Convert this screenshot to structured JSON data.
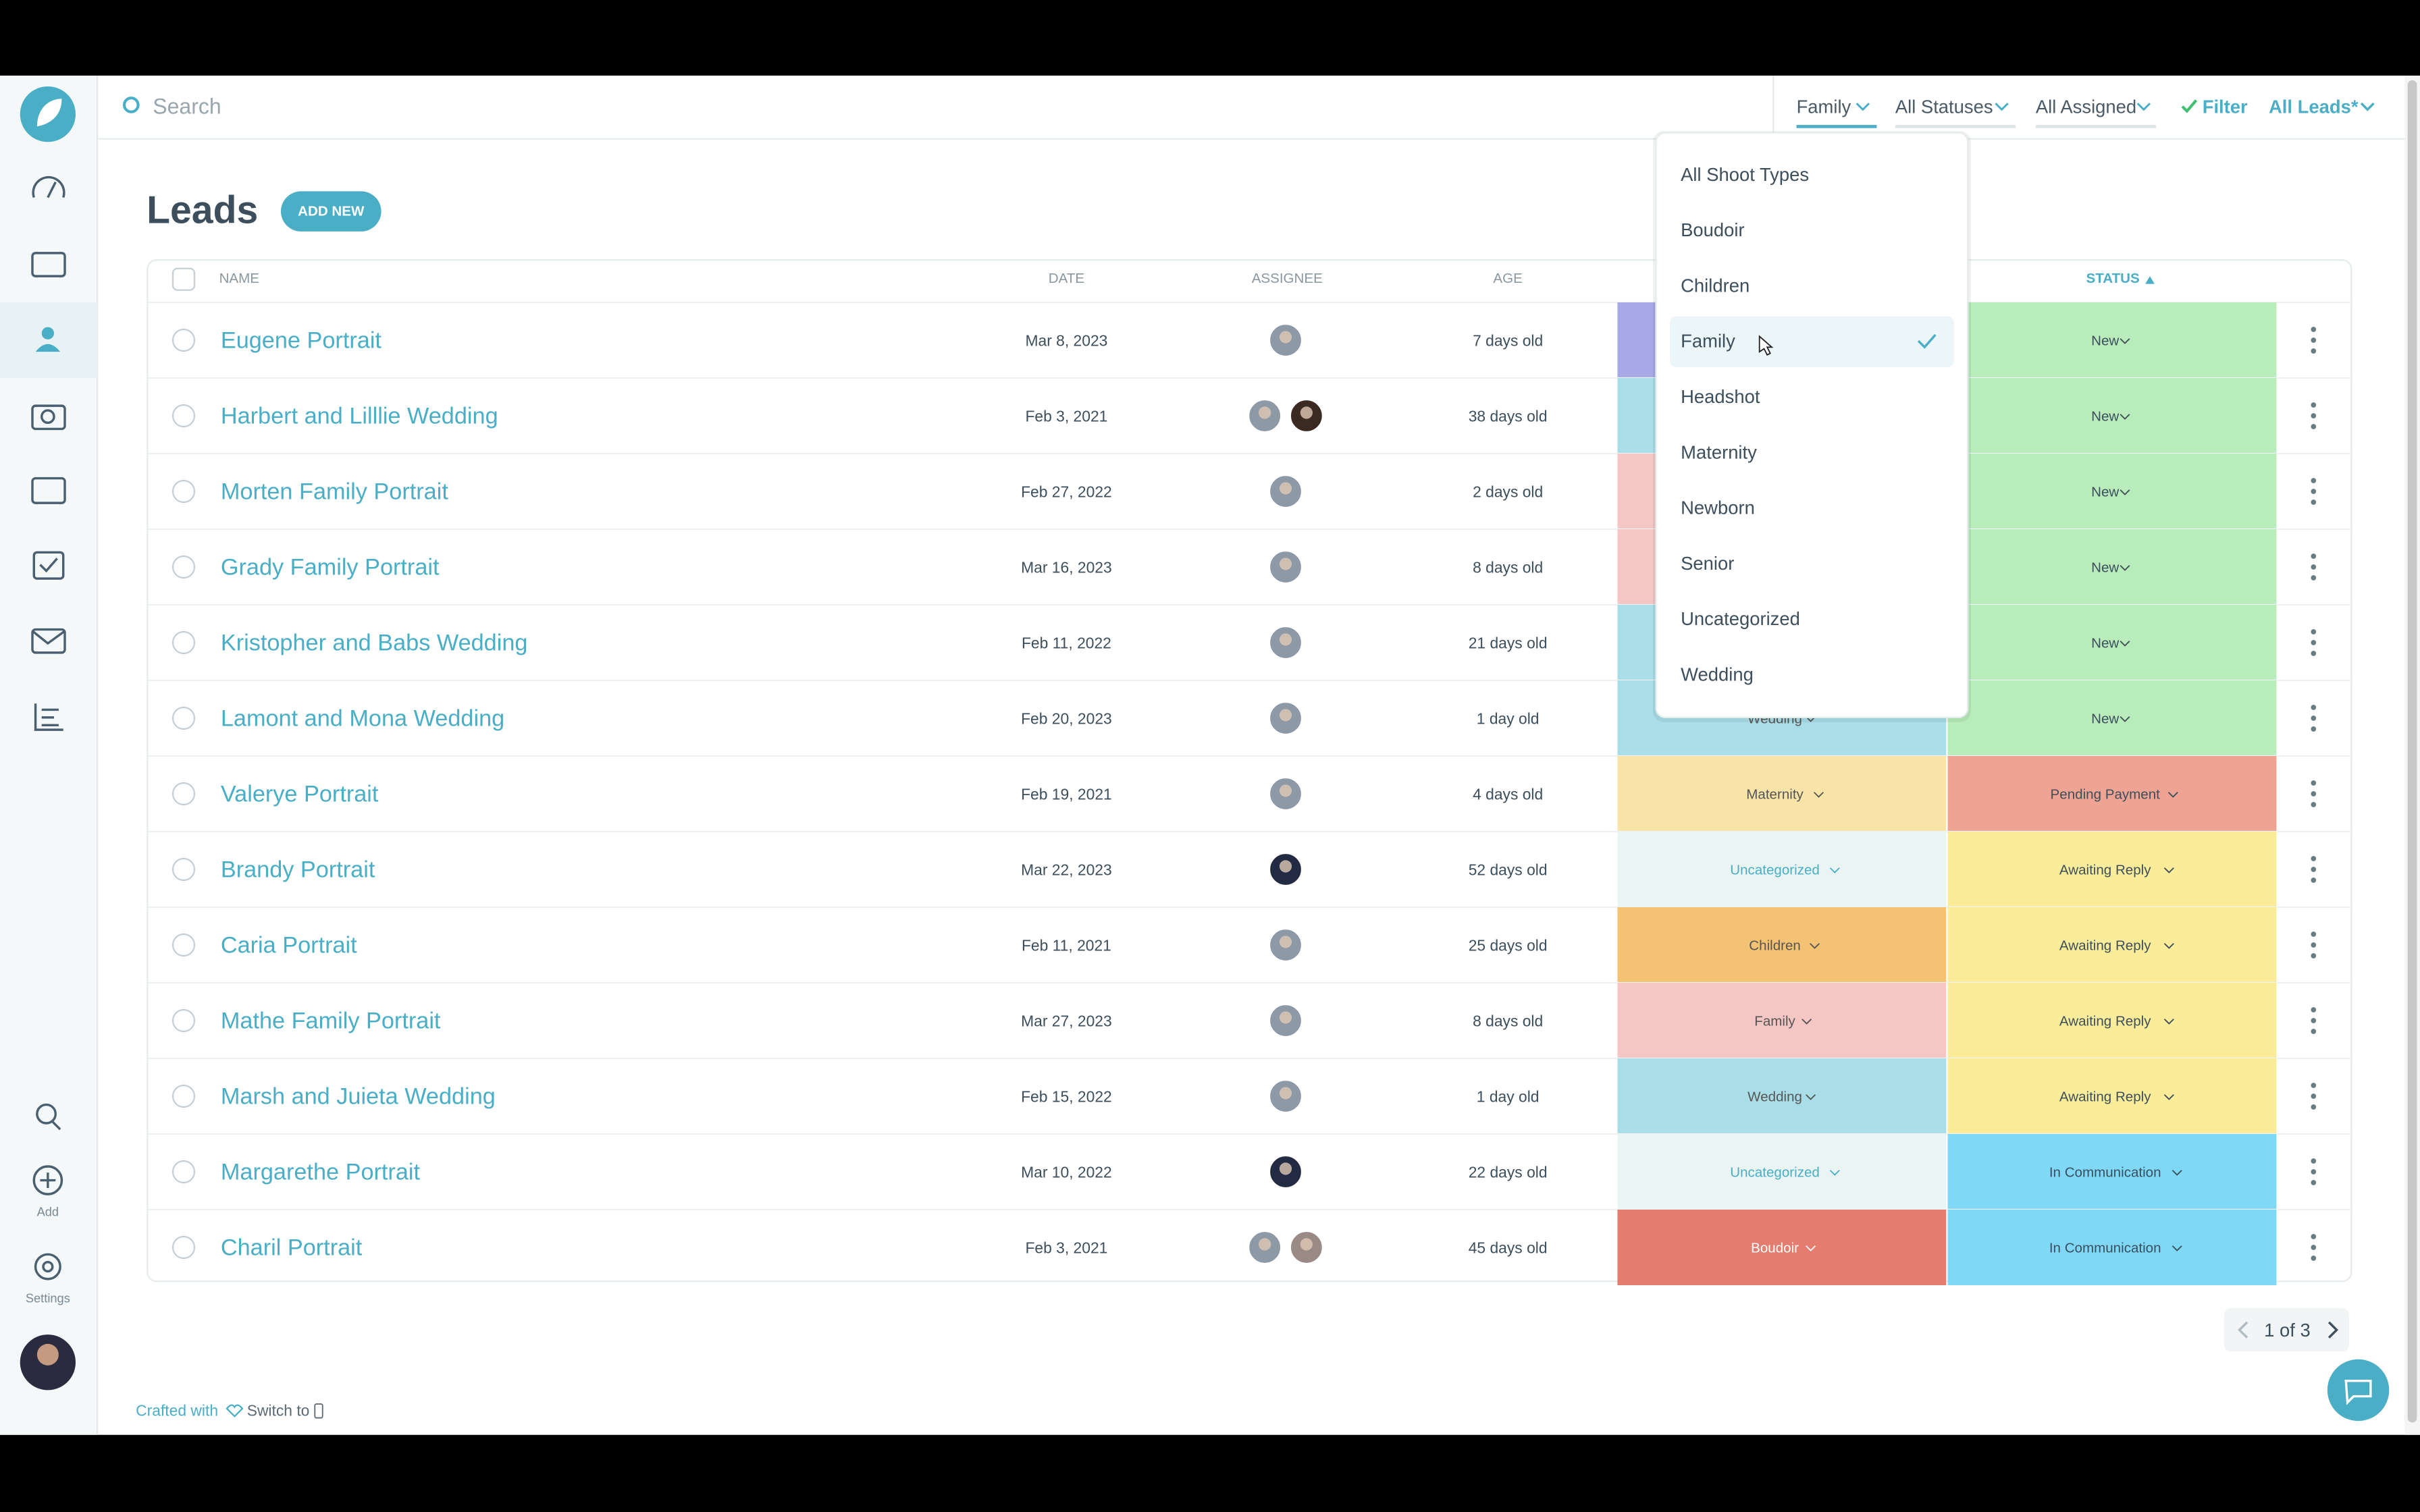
{
  "sidebar": {
    "add": "Add",
    "settings": "Settings"
  },
  "search": {
    "placeholder": "Search"
  },
  "filters": {
    "shoot_type": "Family",
    "status": "All Statuses",
    "assigned": "All Assigned",
    "filter": "Filter",
    "view": "All Leads*"
  },
  "header": {
    "title": "Leads",
    "add_new": "ADD NEW"
  },
  "table": {
    "columns": {
      "name": "NAME",
      "date": "DATE",
      "assignee": "ASSIGNEE",
      "age": "AGE",
      "status": "STATUS"
    },
    "rows": [
      {
        "name": "Eugene Portrait",
        "date": "Mar 8, 2023",
        "age": "7 days old",
        "shoot_type": null,
        "shoot_color": "#a7a9e6",
        "shoot_text_color": "#555555",
        "status": "New",
        "status_color": "#b9ecbb",
        "assignees": [
          "#8d9aa6"
        ]
      },
      {
        "name": "Harbert and Lilllie Wedding",
        "date": "Feb 3, 2021",
        "age": "38 days old",
        "shoot_type": null,
        "shoot_color": "#a9dde8",
        "shoot_text_color": "#555555",
        "status": "New",
        "status_color": "#b9ecbb",
        "assignees": [
          "#8d9aa6",
          "#3a2a22"
        ]
      },
      {
        "name": "Morten Family Portrait",
        "date": "Feb 27, 2022",
        "age": "2 days old",
        "shoot_type": null,
        "shoot_color": "#f4c7c5",
        "shoot_text_color": "#555555",
        "status": "New",
        "status_color": "#b9ecbb",
        "assignees": [
          "#8d9aa6"
        ]
      },
      {
        "name": "Grady Family Portrait",
        "date": "Mar 16, 2023",
        "age": "8 days old",
        "shoot_type": null,
        "shoot_color": "#f4c7c5",
        "shoot_text_color": "#555555",
        "status": "New",
        "status_color": "#b9ecbb",
        "assignees": [
          "#8d9aa6"
        ]
      },
      {
        "name": "Kristopher and Babs Wedding",
        "date": "Feb 11, 2022",
        "age": "21 days old",
        "shoot_type": null,
        "shoot_color": "#a9dde8",
        "shoot_text_color": "#555555",
        "status": "New",
        "status_color": "#b9ecbb",
        "assignees": [
          "#8d9aa6"
        ]
      },
      {
        "name": "Lamont and Mona Wedding",
        "date": "Feb 20, 2023",
        "age": "1 day old",
        "shoot_type": "Wedding",
        "shoot_color": "#a9dde8",
        "shoot_text_color": "#555555",
        "status": "New",
        "status_color": "#b9ecbb",
        "assignees": [
          "#8d9aa6"
        ]
      },
      {
        "name": "Valerye Portrait",
        "date": "Feb 19, 2021",
        "age": "4 days old",
        "shoot_type": "Maternity",
        "shoot_color": "#f9e4a8",
        "shoot_text_color": "#555555",
        "status": "Pending Payment",
        "status_color": "#efa393",
        "assignees": [
          "#8d9aa6"
        ]
      },
      {
        "name": "Brandy Portrait",
        "date": "Mar 22, 2023",
        "age": "52 days old",
        "shoot_type": "Uncategorized",
        "shoot_color": "#e9f4f3",
        "shoot_text_color": "#4aaec6",
        "status": "Awaiting Reply",
        "status_color": "#faec98",
        "assignees": [
          "#222a44"
        ]
      },
      {
        "name": "Caria Portrait",
        "date": "Feb 11, 2021",
        "age": "25 days old",
        "shoot_type": "Children",
        "shoot_color": "#f4c273",
        "shoot_text_color": "#555555",
        "status": "Awaiting Reply",
        "status_color": "#faec98",
        "assignees": [
          "#8d9aa6"
        ]
      },
      {
        "name": "Mathe Family Portrait",
        "date": "Mar 27, 2023",
        "age": "8 days old",
        "shoot_type": "Family",
        "shoot_color": "#f4c7c5",
        "shoot_text_color": "#555555",
        "status": "Awaiting Reply",
        "status_color": "#faec98",
        "assignees": [
          "#8d9aa6"
        ]
      },
      {
        "name": "Marsh and Juieta Wedding",
        "date": "Feb 15, 2022",
        "age": "1 day old",
        "shoot_type": "Wedding",
        "shoot_color": "#a9dde8",
        "shoot_text_color": "#555555",
        "status": "Awaiting Reply",
        "status_color": "#faec98",
        "assignees": [
          "#8d9aa6"
        ]
      },
      {
        "name": "Margarethe Portrait",
        "date": "Mar 10, 2022",
        "age": "22 days old",
        "shoot_type": "Uncategorized",
        "shoot_color": "#e9f4f3",
        "shoot_text_color": "#4aaec6",
        "status": "In Communication",
        "status_color": "#7fd8f6",
        "assignees": [
          "#222a44"
        ]
      },
      {
        "name": "Charil Portrait",
        "date": "Feb 3, 2021",
        "age": "45 days old",
        "shoot_type": "Boudoir",
        "shoot_color": "#e57c70",
        "shoot_text_color": "#ffffff",
        "status": "In Communication",
        "status_color": "#7fd8f6",
        "assignees": [
          "#8d9aa6",
          "#9a8a86"
        ]
      }
    ]
  },
  "dropdown": {
    "options": [
      "All Shoot Types",
      "Boudoir",
      "Children",
      "Family",
      "Headshot",
      "Maternity",
      "Newborn",
      "Senior",
      "Uncategorized",
      "Wedding"
    ],
    "selected": 3
  },
  "pagination": "1 of 3",
  "footer": {
    "crafted": "Crafted with",
    "switch": "Switch to"
  }
}
